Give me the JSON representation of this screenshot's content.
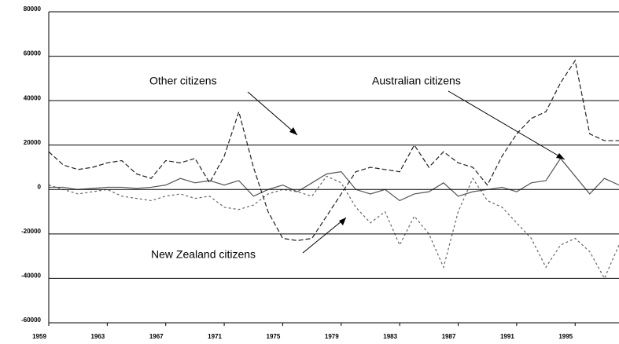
{
  "chart_data": {
    "type": "line",
    "x": [
      1959,
      1960,
      1961,
      1962,
      1963,
      1964,
      1965,
      1966,
      1967,
      1968,
      1969,
      1970,
      1971,
      1972,
      1973,
      1974,
      1975,
      1976,
      1977,
      1978,
      1979,
      1980,
      1981,
      1982,
      1983,
      1984,
      1985,
      1986,
      1987,
      1988,
      1989,
      1990,
      1991,
      1992,
      1993,
      1994,
      1995,
      1996,
      1997,
      1998
    ],
    "series": [
      {
        "name": "Other citizens",
        "color": "#222222",
        "dash": "6,3",
        "values": [
          17000,
          11000,
          9000,
          10000,
          12000,
          13000,
          7000,
          5000,
          13000,
          12000,
          14000,
          3000,
          15000,
          35000,
          10000,
          -10000,
          -22000,
          -23000,
          -22000,
          -12000,
          -2000,
          8000,
          10000,
          9000,
          8000,
          20000,
          10000,
          17000,
          12000,
          10000,
          2000,
          15000,
          25000,
          32000,
          35000,
          48000,
          58000,
          25000,
          22000,
          22000
        ]
      },
      {
        "name": "Australian citizens",
        "color": "#555555",
        "dash": "",
        "values": [
          1000,
          1000,
          0,
          500,
          1000,
          1000,
          500,
          1000,
          2000,
          5000,
          3000,
          4000,
          2000,
          4000,
          -3000,
          0,
          2000,
          -1000,
          3000,
          7000,
          8000,
          0,
          -2000,
          0,
          -5000,
          -2000,
          -1000,
          3000,
          -3000,
          -1000,
          0,
          1000,
          -1000,
          3000,
          4000,
          14000,
          6000,
          -2000,
          5000,
          2000
        ]
      },
      {
        "name": "New Zealand citizens",
        "color": "#666666",
        "dash": "3,3",
        "values": [
          2000,
          0,
          -2000,
          -1000,
          0,
          -3000,
          -4000,
          -5000,
          -3000,
          -2000,
          -4000,
          -3000,
          -8000,
          -9000,
          -7000,
          -2000,
          0,
          -1000,
          -3000,
          6000,
          3000,
          -8000,
          -15000,
          -10000,
          -25000,
          -12000,
          -20000,
          -35000,
          -10000,
          5000,
          -5000,
          -8000,
          -15000,
          -22000,
          -35000,
          -25000,
          -22000,
          -28000,
          -40000,
          -25000
        ]
      }
    ],
    "annotations": [
      "Other citizens",
      "Australian citizens",
      "New Zealand citizens"
    ],
    "xlim": [
      1959,
      1998
    ],
    "xticks": [
      1959,
      1963,
      1967,
      1971,
      1975,
      1979,
      1983,
      1987,
      1991,
      1995
    ],
    "ylim": [
      -60000,
      80000
    ],
    "yticks": [
      -60000,
      -40000,
      -20000,
      0,
      20000,
      40000,
      60000,
      80000
    ],
    "grid": true
  }
}
